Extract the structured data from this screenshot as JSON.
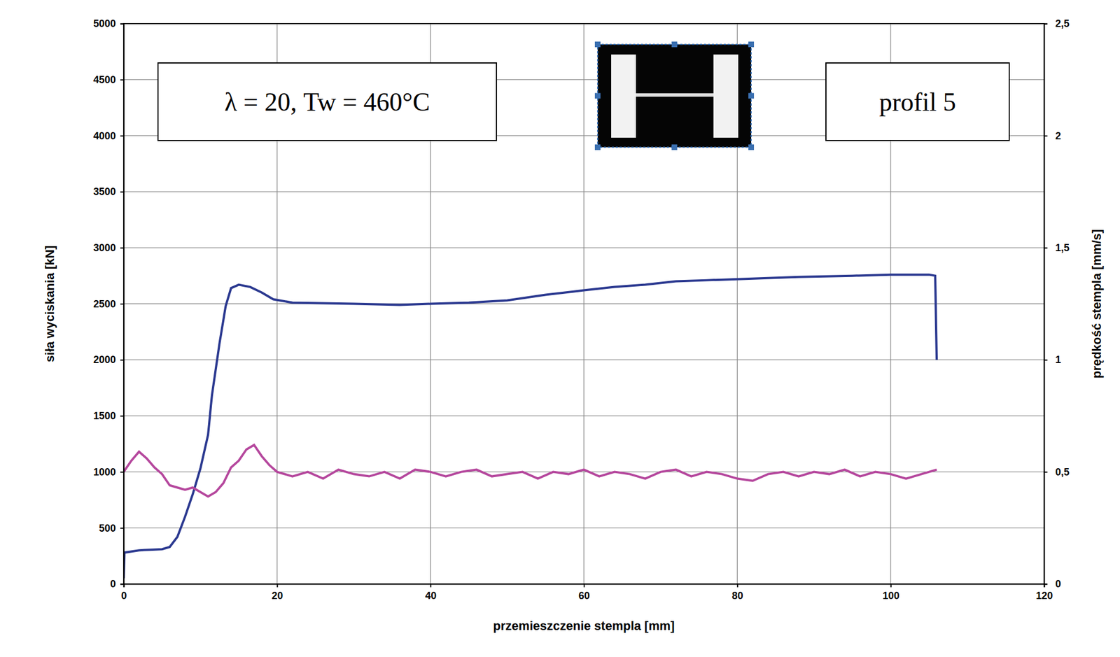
{
  "chart_data": {
    "type": "line",
    "x_label": "przemieszczenie stempla [mm]",
    "y_label": "siła wyciskania [kN]",
    "y2_label": "prędkość stempla [mm/s]",
    "annotations": [
      "λ = 20, Tw = 460°C",
      "profil 5"
    ],
    "xlim": [
      0,
      120
    ],
    "xticks": [
      0,
      20,
      40,
      60,
      80,
      100,
      120
    ],
    "ylim": [
      0,
      5000
    ],
    "yticks": [
      0,
      500,
      1000,
      1500,
      2000,
      2500,
      3000,
      3500,
      4000,
      4500,
      5000
    ],
    "y2lim": [
      0,
      2.5
    ],
    "y2ticks": [
      0,
      {
        "value": 0.5,
        "label": "0,5"
      },
      1,
      {
        "value": 1.5,
        "label": "1,5"
      },
      2,
      {
        "value": 2.5,
        "label": "2,5"
      }
    ],
    "grid": true,
    "series": [
      {
        "color": "#2b3990",
        "x": [
          0,
          0.1,
          2,
          5,
          6,
          7,
          8,
          9,
          10,
          11,
          11.5,
          12.5,
          13.3,
          14,
          15,
          16.5,
          18,
          19.5,
          22,
          30,
          36,
          40,
          45,
          50,
          55,
          60,
          64,
          68,
          72,
          76,
          80,
          88,
          95,
          100,
          105,
          105.8,
          106
        ],
        "values": [
          50,
          280,
          300,
          310,
          330,
          420,
          600,
          800,
          1030,
          1330,
          1680,
          2150,
          2480,
          2640,
          2670,
          2650,
          2600,
          2540,
          2510,
          2500,
          2490,
          2500,
          2510,
          2530,
          2580,
          2620,
          2650,
          2670,
          2700,
          2710,
          2720,
          2740,
          2750,
          2760,
          2760,
          2750,
          2000
        ]
      },
      {
        "color": "#b5479d",
        "axis": "y2",
        "x": [
          0,
          1,
          2,
          3,
          4,
          5,
          6,
          7,
          8,
          9,
          10,
          11,
          12,
          13,
          14,
          15,
          16,
          17,
          18,
          19,
          20,
          22,
          24,
          26,
          28,
          30,
          32,
          34,
          36,
          38,
          40,
          42,
          44,
          46,
          48,
          50,
          52,
          54,
          56,
          58,
          60,
          62,
          64,
          66,
          68,
          70,
          72,
          74,
          76,
          78,
          80,
          82,
          84,
          86,
          88,
          90,
          92,
          94,
          96,
          98,
          100,
          102,
          104,
          106
        ],
        "values": [
          0.5,
          0.55,
          0.59,
          0.56,
          0.52,
          0.49,
          0.44,
          0.43,
          0.42,
          0.43,
          0.41,
          0.39,
          0.41,
          0.45,
          0.52,
          0.55,
          0.6,
          0.62,
          0.57,
          0.53,
          0.5,
          0.48,
          0.5,
          0.47,
          0.51,
          0.49,
          0.48,
          0.5,
          0.47,
          0.51,
          0.5,
          0.48,
          0.5,
          0.51,
          0.48,
          0.49,
          0.5,
          0.47,
          0.5,
          0.49,
          0.51,
          0.48,
          0.5,
          0.49,
          0.47,
          0.5,
          0.51,
          0.48,
          0.5,
          0.49,
          0.47,
          0.46,
          0.49,
          0.5,
          0.48,
          0.5,
          0.49,
          0.51,
          0.48,
          0.5,
          0.49,
          0.47,
          0.49,
          0.51
        ]
      }
    ]
  }
}
